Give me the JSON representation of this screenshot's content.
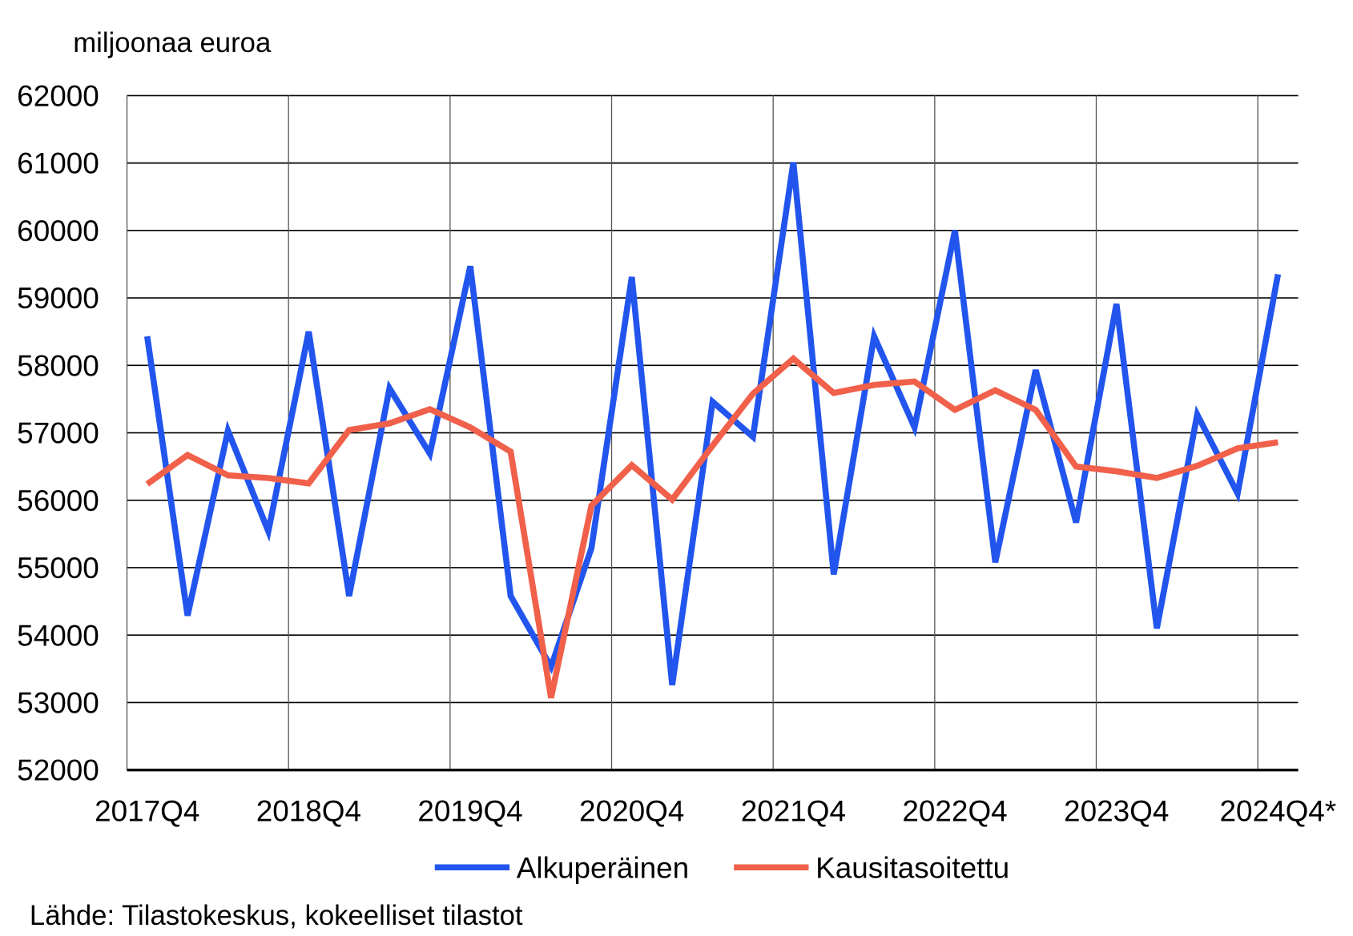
{
  "chart_data": {
    "type": "line",
    "y_label": "miljoonaa euroa",
    "source": "Lähde: Tilastokeskus, kokeelliset tilastot",
    "categories": [
      "2017Q4",
      null,
      null,
      null,
      "2018Q4",
      null,
      null,
      null,
      "2019Q4",
      null,
      null,
      null,
      "2020Q4",
      null,
      null,
      null,
      "2021Q4",
      null,
      null,
      null,
      "2022Q4",
      null,
      null,
      null,
      "2023Q4",
      null,
      null,
      null,
      "2024Q4*"
    ],
    "series": [
      {
        "name": "Alkuperäinen",
        "color": "#2255ee",
        "values": [
          58430,
          54290,
          57030,
          55540,
          58500,
          54580,
          57660,
          56690,
          59470,
          54580,
          53530,
          55290,
          59310,
          53260,
          57460,
          56940,
          61010,
          54900,
          58430,
          57080,
          60000,
          55080,
          57930,
          55670,
          58910,
          54100,
          57270,
          56100,
          59350
        ]
      },
      {
        "name": "Kausitasoitettu",
        "color": "#f0604a",
        "values": [
          56240,
          56670,
          56370,
          56330,
          56250,
          57040,
          57140,
          57350,
          57080,
          56720,
          53070,
          55920,
          56520,
          56010,
          56810,
          57580,
          58100,
          57590,
          57710,
          57760,
          57340,
          57630,
          57340,
          56500,
          56430,
          56330,
          56510,
          56770,
          56860
        ]
      }
    ],
    "ylim": [
      52000,
      62000
    ],
    "yticks": [
      52000,
      53000,
      54000,
      55000,
      56000,
      57000,
      58000,
      59000,
      60000,
      61000,
      62000
    ],
    "grid": true,
    "legend": "bottom"
  }
}
